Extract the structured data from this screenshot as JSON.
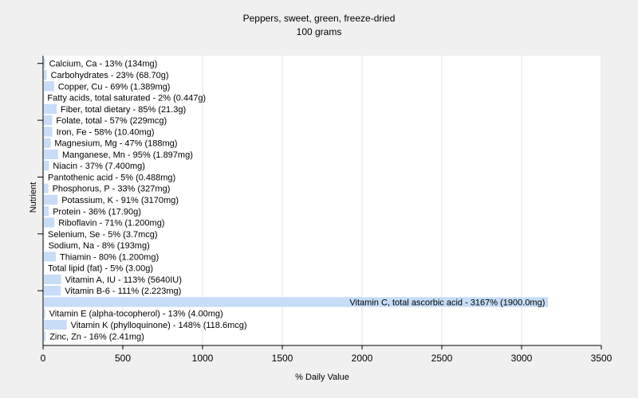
{
  "chart_data": {
    "type": "bar",
    "orientation": "horizontal",
    "title": "Peppers, sweet, green, freeze-dried",
    "subtitle": "100 grams",
    "xlabel": "% Daily Value",
    "ylabel": "Nutrient",
    "xlim": [
      0,
      3500
    ],
    "xticks": [
      "0",
      "500",
      "1000",
      "1500",
      "2000",
      "2500",
      "3000",
      "3500"
    ],
    "grid": true,
    "bar_color": "#c6dcf7",
    "categories": [
      "Calcium, Ca",
      "Carbohydrates",
      "Copper, Cu",
      "Fatty acids, total saturated",
      "Fiber, total dietary",
      "Folate, total",
      "Iron, Fe",
      "Magnesium, Mg",
      "Manganese, Mn",
      "Niacin",
      "Pantothenic acid",
      "Phosphorus, P",
      "Potassium, K",
      "Protein",
      "Riboflavin",
      "Selenium, Se",
      "Sodium, Na",
      "Thiamin",
      "Total lipid (fat)",
      "Vitamin A, IU",
      "Vitamin B-6",
      "Vitamin C, total ascorbic acid",
      "Vitamin E (alpha-tocopherol)",
      "Vitamin K (phylloquinone)",
      "Zinc, Zn"
    ],
    "values": [
      13,
      23,
      69,
      2,
      85,
      57,
      58,
      47,
      95,
      37,
      5,
      33,
      91,
      36,
      71,
      5,
      8,
      80,
      5,
      113,
      111,
      3167,
      13,
      148,
      16
    ],
    "labels": [
      "Calcium, Ca - 13% (134mg)",
      "Carbohydrates - 23% (68.70g)",
      "Copper, Cu - 69% (1.389mg)",
      "Fatty acids, total saturated - 2% (0.447g)",
      "Fiber, total dietary - 85% (21.3g)",
      "Folate, total - 57% (229mcg)",
      "Iron, Fe - 58% (10.40mg)",
      "Magnesium, Mg - 47% (188mg)",
      "Manganese, Mn - 95% (1.897mg)",
      "Niacin - 37% (7.400mg)",
      "Pantothenic acid - 5% (0.488mg)",
      "Phosphorus, P - 33% (327mg)",
      "Potassium, K - 91% (3170mg)",
      "Protein - 36% (17.90g)",
      "Riboflavin - 71% (1.200mg)",
      "Selenium, Se - 5% (3.7mcg)",
      "Sodium, Na - 8% (193mg)",
      "Thiamin - 80% (1.200mg)",
      "Total lipid (fat) - 5% (3.00g)",
      "Vitamin A, IU - 113% (5640IU)",
      "Vitamin B-6 - 111% (2.223mg)",
      "Vitamin C, total ascorbic acid - 3167% (1900.0mg)",
      "Vitamin E (alpha-tocopherol) - 13% (4.00mg)",
      "Vitamin K (phylloquinone) - 148% (118.6mcg)",
      "Zinc, Zn - 16% (2.41mg)"
    ]
  }
}
